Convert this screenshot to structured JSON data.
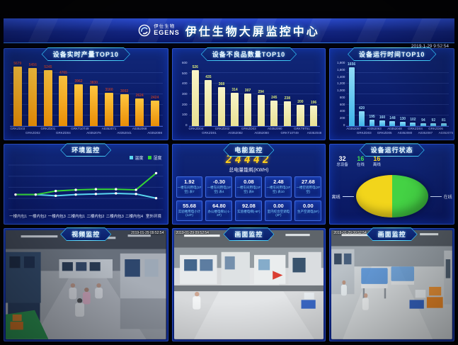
{
  "header": {
    "logo_cn": "伊仕生物",
    "logo_en": "EGENS",
    "title": "伊仕生物大屏监控中心",
    "timestamp": "2019-1-29 9:52:54"
  },
  "panels": {
    "production": {
      "title": "设备实时产量TOP10"
    },
    "defects": {
      "title": "设备不良品数量TOP10"
    },
    "runtime": {
      "title": "设备运行时间TOP10"
    },
    "environment": {
      "title": "环境监控"
    },
    "energy": {
      "title": "电能监控",
      "total_value": "24442",
      "total_label": "总电量能耗(KWH)",
      "meters": [
        {
          "value": "1.92",
          "label": "一楼车间用电(1F空) 表7"
        },
        {
          "value": "-0.30",
          "label": "一楼车间用电(1F空) 表4"
        },
        {
          "value": "0.08",
          "label": "一楼车间用电(1F空) 表9"
        },
        {
          "value": "2.48",
          "label": "一楼车间用电(1F空) 表10"
        },
        {
          "value": "27.68",
          "label": "一楼空调用电(2F空)"
        },
        {
          "value": "55.68",
          "label": "实验楼用电小计(12F)"
        },
        {
          "value": "64.80",
          "label": "办公楼电梯1(-1-2F)"
        },
        {
          "value": "92.08",
          "label": "实验楼电梯(-6F)"
        },
        {
          "value": "0.00",
          "label": "室内综合空调电(2F)"
        },
        {
          "value": "0.00",
          "label": "生产空调电(5F)"
        }
      ]
    },
    "status": {
      "title": "设备运行状态",
      "stats": [
        {
          "value": "32",
          "label": "总设备",
          "color": "#ffffff"
        },
        {
          "value": "16",
          "label": "在线",
          "color": "#3ee04e"
        },
        {
          "value": "16",
          "label": "离线",
          "color": "#ffd21c"
        }
      ]
    },
    "cameras": [
      {
        "title": "视频监控",
        "overlay": "2019-01-29 09:52:54"
      },
      {
        "title": "画面监控",
        "overlay": "2019-01-29 09:52:54"
      },
      {
        "title": "画面监控",
        "overlay": "2019-01-29 09:52:54"
      }
    ]
  },
  "chart_data": [
    {
      "id": "production",
      "type": "bar",
      "title": "设备实时产量TOP10",
      "categories": [
        "GRKZD03",
        "GRKZD02",
        "GRKZD01",
        "GRKZD04",
        "GRKT10T49",
        "A0352076",
        "A0352071",
        "A0352041",
        "A0352068",
        "A0352098"
      ],
      "values": [
        5679,
        5456,
        5245,
        4765,
        3962,
        3830,
        3160,
        3002,
        2624,
        2424
      ],
      "ylim": [
        0,
        6000
      ],
      "yticks": [],
      "bar_color": "#e88d06",
      "bar_color_light": "#ffc63f",
      "label_color": "#b03a2e",
      "legend_position": "none",
      "grid": true
    },
    {
      "id": "defects",
      "type": "bar",
      "title": "设备不良品数量TOP10",
      "categories": [
        "GRKZD04",
        "GRKZD01",
        "GRKZD02",
        "A0352082",
        "GRKZD03",
        "A0352080",
        "A0352090",
        "GRKT10T49",
        "GRKT9T51",
        "A0352048"
      ],
      "values": [
        526,
        435,
        368,
        314,
        307,
        294,
        245,
        238,
        200,
        196
      ],
      "ylim": [
        0,
        600
      ],
      "yticks": [
        600,
        500,
        400,
        300,
        200,
        100,
        0
      ],
      "bar_color": "#e9e193",
      "bar_color_light": "#f8f4c8",
      "label_color": "#d9e87a",
      "legend_position": "none",
      "grid": true
    },
    {
      "id": "runtime",
      "type": "bar",
      "title": "设备运行时间TOP10",
      "categories": [
        "A0352067",
        "GRKZD03",
        "A0352063",
        "GRKZD05",
        "A0352048",
        "A0352080",
        "GRKZD04",
        "A0352087",
        "GRKZD06",
        "A0352075"
      ],
      "values": [
        1656,
        420,
        195,
        160,
        148,
        130,
        102,
        94,
        92,
        81
      ],
      "ylim": [
        0,
        1800
      ],
      "yticks": [
        1800,
        1600,
        1400,
        1200,
        1000,
        800,
        600,
        400,
        200,
        0
      ],
      "bar_color": "#3fb4e8",
      "bar_color_light": "#8fdcf8",
      "label_color": "#9fd8f5",
      "legend_position": "none",
      "grid": true
    },
    {
      "id": "environment",
      "type": "line",
      "title": "环境监控",
      "categories": [
        "一楼内包1",
        "一楼内包2",
        "一楼内包3",
        "二楼内包1",
        "二楼内包2",
        "二楼内包3",
        "二楼内包4",
        "室外环境"
      ],
      "series": [
        {
          "name": "温度",
          "color": "#5ad7f0",
          "values": [
            22,
            22,
            21,
            22,
            22.5,
            23,
            22.5,
            19
          ]
        },
        {
          "name": "湿度",
          "color": "#35d435",
          "values": [
            22,
            22,
            25,
            26,
            26.5,
            26.5,
            26,
            40
          ]
        }
      ],
      "ylim": [
        10,
        45
      ],
      "grid": true,
      "legend_position": "top-right"
    },
    {
      "id": "device-status",
      "type": "pie",
      "title": "设备运行状态",
      "slices": [
        {
          "label": "离线",
          "value": 16,
          "color": "#f2d51b"
        },
        {
          "label": "在线",
          "value": 16,
          "color": "#44d244"
        }
      ]
    }
  ]
}
